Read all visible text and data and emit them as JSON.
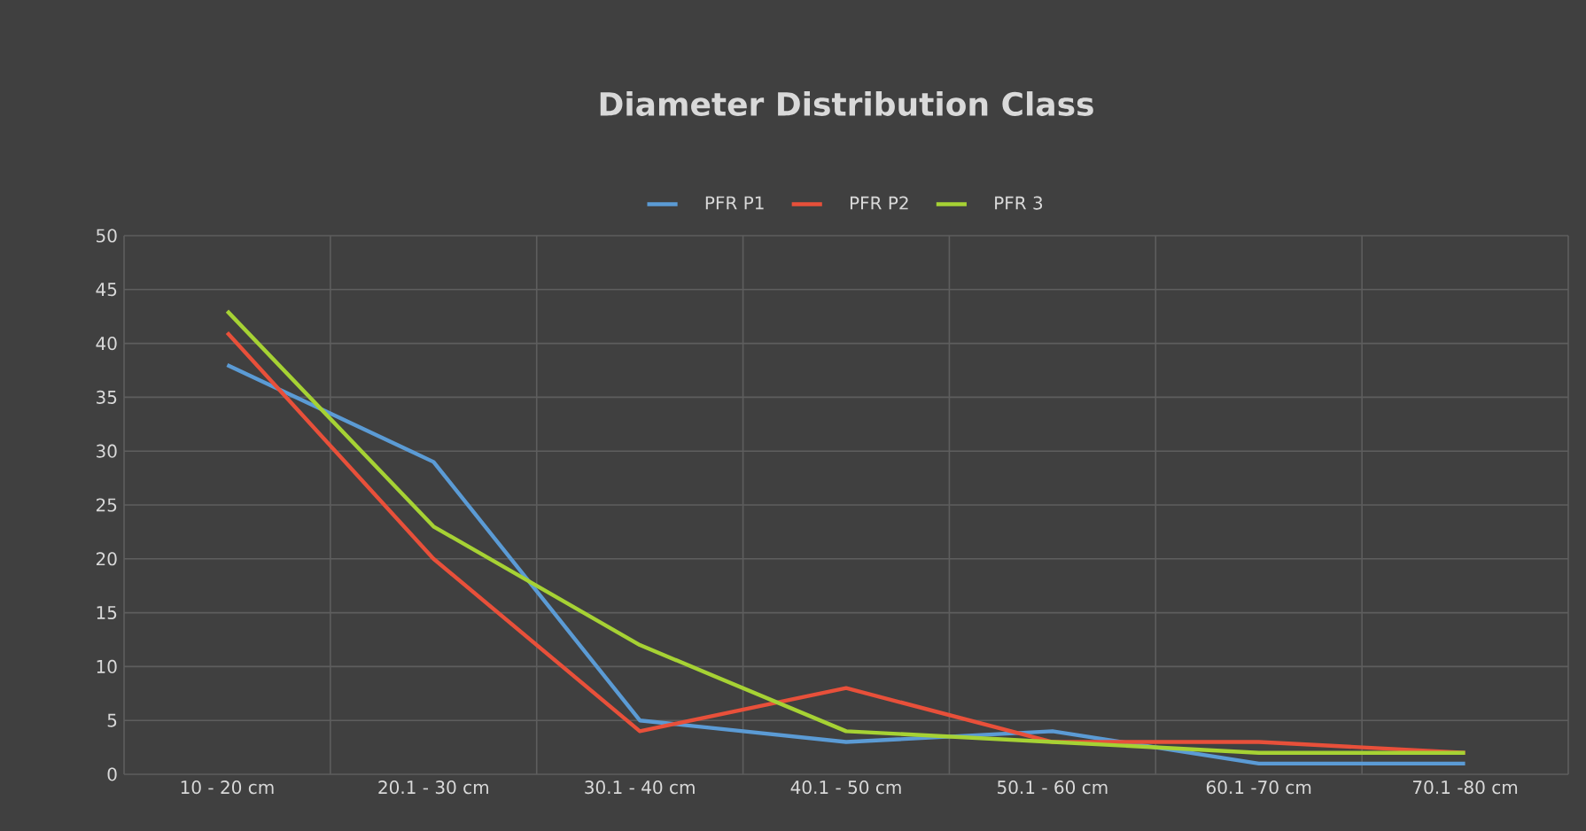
{
  "chart_data": {
    "type": "line",
    "title": "Diameter Distribution Class",
    "categories": [
      "10 - 20 cm",
      "20.1 - 30 cm",
      "30.1 - 40 cm",
      "40.1 - 50 cm",
      "50.1 - 60 cm",
      "60.1 -70 cm",
      "70.1 -80 cm"
    ],
    "series": [
      {
        "name": "PFR P1",
        "color": "#5b9bd5",
        "values": [
          38,
          29,
          5,
          3,
          4,
          1,
          1
        ]
      },
      {
        "name": "PFR P2",
        "color": "#e8503a",
        "values": [
          41,
          20,
          4,
          8,
          3,
          3,
          2
        ]
      },
      {
        "name": "PFR 3",
        "color": "#a6d234",
        "values": [
          43,
          23,
          12,
          4,
          3,
          2,
          2
        ]
      }
    ],
    "ylim": [
      0,
      50
    ],
    "yticks": [
      0,
      5,
      10,
      15,
      20,
      25,
      30,
      35,
      40,
      45,
      50
    ],
    "grid": true,
    "legend": "top",
    "marker": "none",
    "line_style": "solid"
  }
}
